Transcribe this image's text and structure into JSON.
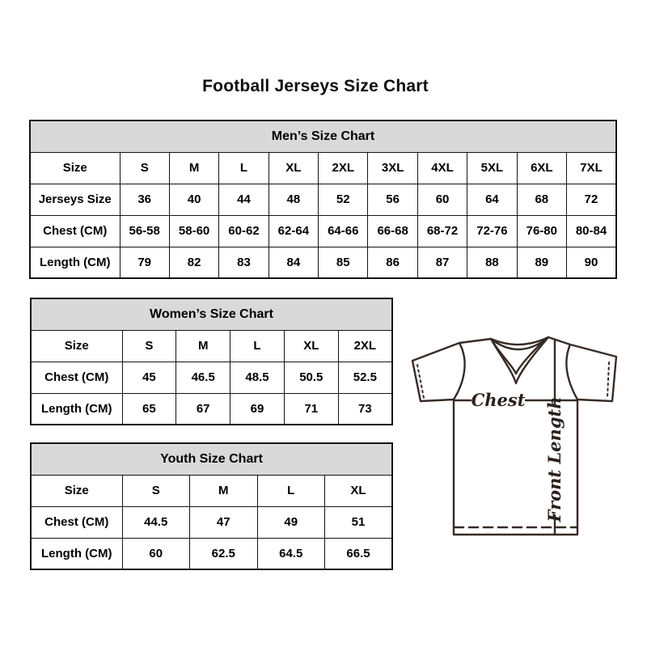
{
  "page": {
    "title": "Football Jerseys Size Chart"
  },
  "tables": {
    "mens": {
      "title": "Men’s Size Chart",
      "rows": [
        [
          "Size",
          "S",
          "M",
          "L",
          "XL",
          "2XL",
          "3XL",
          "4XL",
          "5XL",
          "6XL",
          "7XL"
        ],
        [
          "Jerseys Size",
          "36",
          "40",
          "44",
          "48",
          "52",
          "56",
          "60",
          "64",
          "68",
          "72"
        ],
        [
          "Chest (CM)",
          "56-58",
          "58-60",
          "60-62",
          "62-64",
          "64-66",
          "66-68",
          "68-72",
          "72-76",
          "76-80",
          "80-84"
        ],
        [
          "Length (CM)",
          "79",
          "82",
          "83",
          "84",
          "85",
          "86",
          "87",
          "88",
          "89",
          "90"
        ]
      ]
    },
    "womens": {
      "title": "Women’s Size Chart",
      "rows": [
        [
          "Size",
          "S",
          "M",
          "L",
          "XL",
          "2XL"
        ],
        [
          "Chest (CM)",
          "45",
          "46.5",
          "48.5",
          "50.5",
          "52.5"
        ],
        [
          "Length (CM)",
          "65",
          "67",
          "69",
          "71",
          "73"
        ]
      ]
    },
    "youth": {
      "title": "Youth Size Chart",
      "rows": [
        [
          "Size",
          "S",
          "M",
          "L",
          "XL"
        ],
        [
          "Chest (CM)",
          "44.5",
          "47",
          "49",
          "51"
        ],
        [
          "Length (CM)",
          "60",
          "62.5",
          "64.5",
          "66.5"
        ]
      ]
    }
  },
  "diagram": {
    "chest_label": "Chest",
    "front_length_label": "Front Length"
  },
  "colors": {
    "table_header_bg": "#d9d9d9",
    "table_border": "#141414",
    "text": "#000000",
    "diagram_line": "#372b26"
  }
}
